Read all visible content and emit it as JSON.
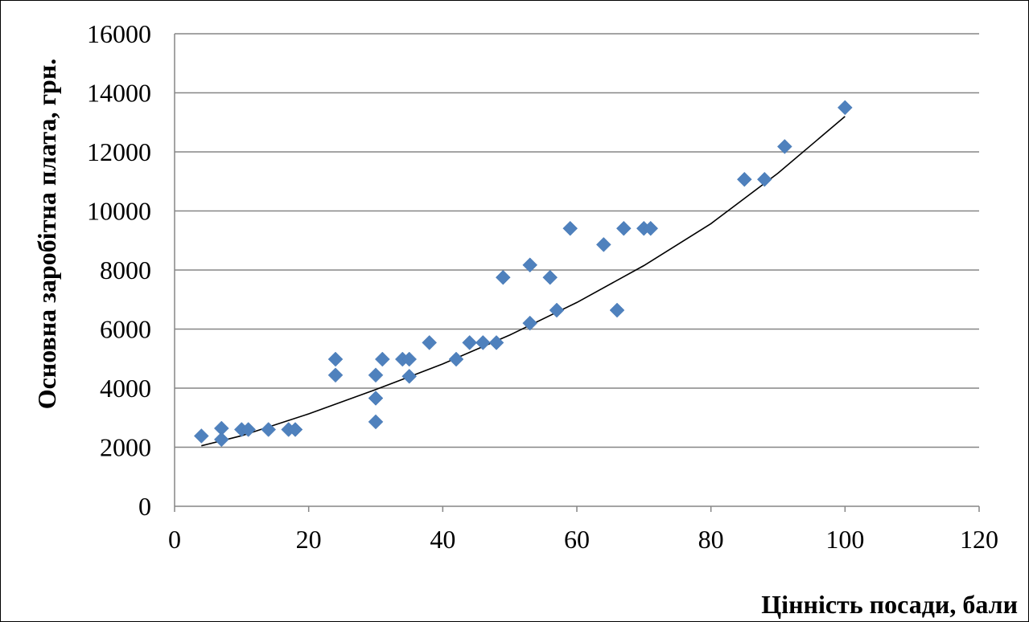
{
  "chart_data": {
    "type": "scatter",
    "title": "",
    "xlabel": "Цінність посади, бали",
    "ylabel": "Основна заробітна плата, грн.",
    "xlim": [
      0,
      120
    ],
    "ylim": [
      0,
      16000
    ],
    "x_ticks": [
      0,
      20,
      40,
      60,
      80,
      100,
      120
    ],
    "y_ticks": [
      0,
      2000,
      4000,
      6000,
      8000,
      10000,
      12000,
      14000,
      16000
    ],
    "grid": "horizontal",
    "legend": "none",
    "marker_color": "#4f81bd",
    "trendline_color": "#000000",
    "points": [
      {
        "x": 4,
        "y": 2380
      },
      {
        "x": 7,
        "y": 2640
      },
      {
        "x": 7,
        "y": 2260
      },
      {
        "x": 10,
        "y": 2600
      },
      {
        "x": 11,
        "y": 2600
      },
      {
        "x": 14,
        "y": 2600
      },
      {
        "x": 17,
        "y": 2600
      },
      {
        "x": 18,
        "y": 2600
      },
      {
        "x": 24,
        "y": 4980
      },
      {
        "x": 24,
        "y": 4440
      },
      {
        "x": 30,
        "y": 4440
      },
      {
        "x": 30,
        "y": 3660
      },
      {
        "x": 30,
        "y": 2860
      },
      {
        "x": 31,
        "y": 4980
      },
      {
        "x": 34,
        "y": 4980
      },
      {
        "x": 35,
        "y": 4980
      },
      {
        "x": 35,
        "y": 4400
      },
      {
        "x": 38,
        "y": 5540
      },
      {
        "x": 42,
        "y": 4980
      },
      {
        "x": 44,
        "y": 5540
      },
      {
        "x": 46,
        "y": 5540
      },
      {
        "x": 48,
        "y": 5540
      },
      {
        "x": 49,
        "y": 7750
      },
      {
        "x": 53,
        "y": 8170
      },
      {
        "x": 53,
        "y": 6200
      },
      {
        "x": 56,
        "y": 7750
      },
      {
        "x": 57,
        "y": 6640
      },
      {
        "x": 59,
        "y": 9410
      },
      {
        "x": 64,
        "y": 8860
      },
      {
        "x": 66,
        "y": 6640
      },
      {
        "x": 67,
        "y": 9410
      },
      {
        "x": 70,
        "y": 9410
      },
      {
        "x": 71,
        "y": 9410
      },
      {
        "x": 85,
        "y": 11070
      },
      {
        "x": 88,
        "y": 11070
      },
      {
        "x": 91,
        "y": 12180
      },
      {
        "x": 100,
        "y": 13500
      }
    ],
    "trendline": {
      "type": "exponential",
      "x_range": [
        4,
        100
      ],
      "x": [
        4,
        10,
        20,
        30,
        40,
        50,
        60,
        70,
        80,
        90,
        100
      ],
      "y": [
        2050,
        2390,
        3130,
        3950,
        4820,
        5800,
        6900,
        8150,
        9570,
        11280,
        13200
      ]
    }
  }
}
